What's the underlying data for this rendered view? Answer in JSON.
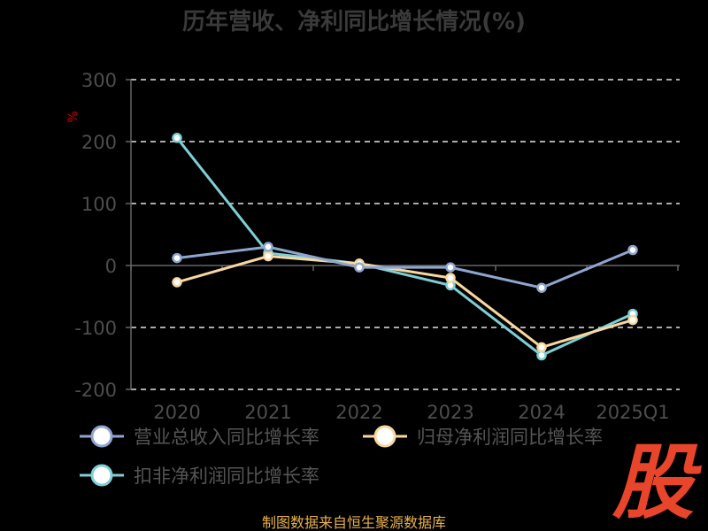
{
  "chart_data": {
    "type": "line",
    "title": "历年营收、净利同比增长情况(%)",
    "ylabel": "%",
    "categories": [
      "2020",
      "2021",
      "2022",
      "2023",
      "2024",
      "2025Q1"
    ],
    "ylim": [
      -200,
      300
    ],
    "yticks": [
      300,
      200,
      100,
      0,
      -100,
      -200
    ],
    "grid": true,
    "legend_position": "bottom-left",
    "series": [
      {
        "name": "营业总收入同比增长率",
        "color": "#8ea6cf",
        "values": [
          12,
          30,
          -3,
          -3,
          -36,
          25
        ]
      },
      {
        "name": "归母净利润同比增长率",
        "color": "#f8d7a0",
        "values": [
          -27,
          15,
          3,
          -20,
          -132,
          -88
        ]
      },
      {
        "name": "扣非净利润同比增长率",
        "color": "#7ecfd6",
        "values": [
          206,
          20,
          3,
          -32,
          -145,
          -78
        ]
      }
    ]
  },
  "footer": {
    "source": "制图数据来自恒生聚源数据库",
    "watermark": "股"
  },
  "colors": {
    "background": "#000000",
    "title": "#3a3a3a",
    "tick": "#4d4d4d",
    "legend_text": "#555555",
    "grid": "#e6e6e6",
    "axis": "#666666",
    "unit": "#d40000",
    "source": "#e8b04a",
    "watermark": "#e8452b"
  }
}
